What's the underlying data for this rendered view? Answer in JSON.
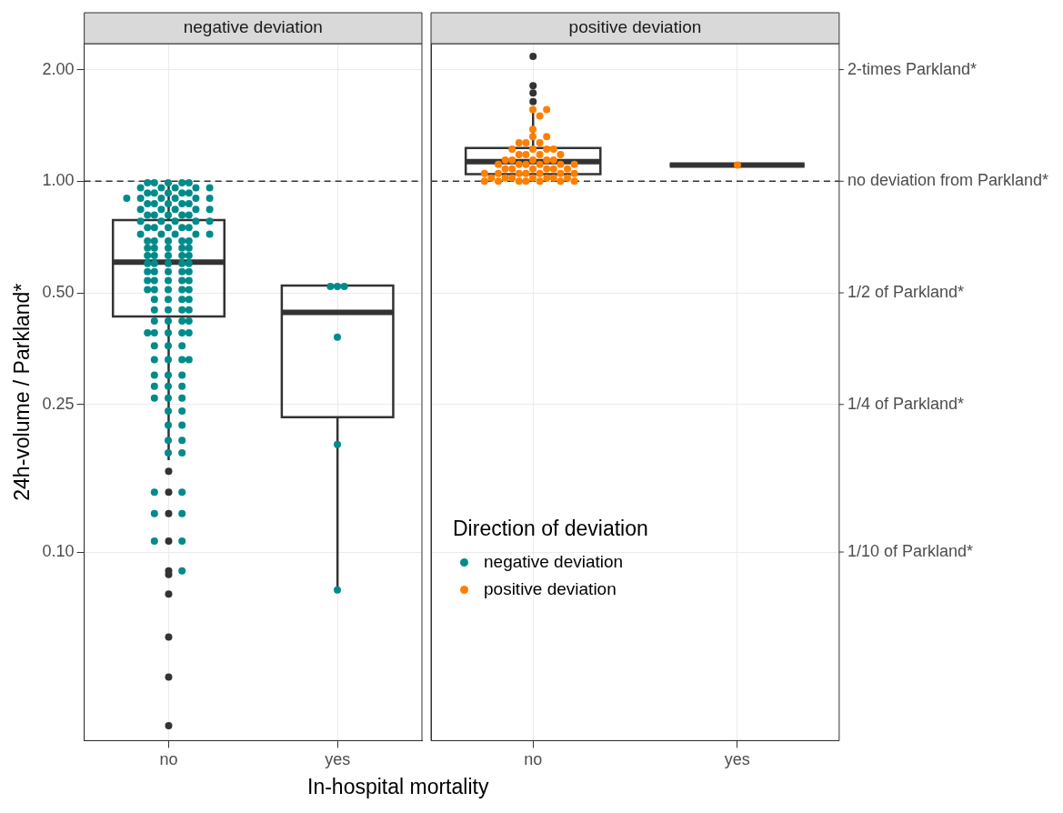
{
  "chart_data": [
    {
      "type": "box",
      "title": "negative deviation",
      "xlabel": "In-hospital mortality",
      "ylabel": "24h-volume / Parkland*",
      "categories": [
        "no",
        "yes"
      ],
      "log": true,
      "ylim": [
        0.031,
        2.35
      ],
      "yticks": [
        {
          "value": 0.1,
          "label": "0.10"
        },
        {
          "value": 0.25,
          "label": "0.25"
        },
        {
          "value": 0.5,
          "label": "0.50"
        },
        {
          "value": 1,
          "label": "1.00"
        },
        {
          "value": 2,
          "label": "2.00"
        }
      ],
      "grid": true,
      "ref_lines": [
        {
          "axis": "y",
          "value": 1,
          "color": "#333333",
          "line_style": "dashed"
        }
      ],
      "boxes": [
        {
          "low": 0.177,
          "q1": 0.432,
          "median": 0.605,
          "q3": 0.786,
          "high": 1.0,
          "outliers": [
            0.165,
            0.145,
            0.127,
            0.107,
            0.089,
            0.087,
            0.077,
            0.059,
            0.046,
            0.034
          ]
        },
        {
          "low": 0.079,
          "q1": 0.231,
          "median": 0.443,
          "q3": 0.523,
          "high": 0.523
        }
      ],
      "series": [
        {
          "name": "negative deviation",
          "type": "scatter",
          "color": "#008b8b",
          "x": [
            "no",
            "no",
            "no",
            "no",
            "no",
            "no",
            "no",
            "no",
            "no",
            "no",
            "no",
            "no",
            "no",
            "no",
            "no",
            "no",
            "no",
            "no",
            "no",
            "no",
            "no",
            "no",
            "no",
            "no",
            "no",
            "no",
            "no",
            "no",
            "no",
            "no",
            "no",
            "no",
            "no",
            "no",
            "no",
            "no",
            "no",
            "no",
            "no",
            "no",
            "no",
            "no",
            "no",
            "no",
            "no",
            "no",
            "no",
            "no",
            "no",
            "no",
            "no",
            "no",
            "no",
            "no",
            "no",
            "no",
            "no",
            "no",
            "no",
            "no",
            "no",
            "no",
            "no",
            "no",
            "no",
            "no",
            "no",
            "no",
            "no",
            "no",
            "no",
            "no",
            "no",
            "no",
            "no",
            "no",
            "no",
            "no",
            "no",
            "no",
            "no",
            "no",
            "no",
            "no",
            "no",
            "no",
            "no",
            "no",
            "no",
            "no",
            "no",
            "no",
            "no",
            "no",
            "no",
            "no",
            "no",
            "no",
            "no",
            "no",
            "no",
            "no",
            "no",
            "no",
            "no",
            "no",
            "no",
            "no",
            "no",
            "no",
            "no",
            "no",
            "no",
            "no",
            "no",
            "no",
            "no",
            "no",
            "no",
            "no",
            "no",
            "no",
            "no",
            "no",
            "no",
            "no",
            "no",
            "no",
            "no",
            "no",
            "no",
            "no",
            "no",
            "no",
            "yes",
            "yes",
            "yes",
            "yes",
            "yes",
            "yes"
          ],
          "values": [
            0.99,
            0.99,
            0.99,
            0.99,
            0.99,
            0.96,
            0.96,
            0.96,
            0.96,
            0.96,
            0.93,
            0.93,
            0.93,
            0.93,
            0.93,
            0.9,
            0.9,
            0.9,
            0.9,
            0.9,
            0.9,
            0.87,
            0.87,
            0.87,
            0.87,
            0.87,
            0.84,
            0.84,
            0.84,
            0.84,
            0.84,
            0.81,
            0.81,
            0.81,
            0.81,
            0.81,
            0.78,
            0.78,
            0.78,
            0.78,
            0.78,
            0.75,
            0.75,
            0.75,
            0.75,
            0.75,
            0.72,
            0.72,
            0.72,
            0.72,
            0.72,
            0.69,
            0.69,
            0.69,
            0.69,
            0.69,
            0.66,
            0.66,
            0.66,
            0.66,
            0.66,
            0.63,
            0.63,
            0.63,
            0.63,
            0.63,
            0.6,
            0.6,
            0.6,
            0.6,
            0.6,
            0.57,
            0.57,
            0.57,
            0.57,
            0.57,
            0.54,
            0.54,
            0.54,
            0.54,
            0.54,
            0.51,
            0.51,
            0.51,
            0.51,
            0.51,
            0.48,
            0.48,
            0.48,
            0.48,
            0.45,
            0.45,
            0.45,
            0.45,
            0.42,
            0.42,
            0.42,
            0.42,
            0.39,
            0.39,
            0.39,
            0.39,
            0.39,
            0.36,
            0.36,
            0.36,
            0.33,
            0.33,
            0.33,
            0.33,
            0.3,
            0.3,
            0.3,
            0.28,
            0.28,
            0.28,
            0.26,
            0.26,
            0.26,
            0.24,
            0.24,
            0.22,
            0.22,
            0.2,
            0.2,
            0.185,
            0.185,
            0.145,
            0.145,
            0.127,
            0.127,
            0.107,
            0.107,
            0.089,
            0.52,
            0.52,
            0.52,
            0.38,
            0.195,
            0.079
          ]
        }
      ]
    },
    {
      "type": "box",
      "title": "positive deviation",
      "categories": [
        "no",
        "yes"
      ],
      "log": true,
      "ylim": [
        0.031,
        2.35
      ],
      "yticks": [
        0.1,
        0.25,
        0.5,
        1,
        2
      ],
      "grid": true,
      "tick_labels": "x",
      "annotations": [
        "1/10 of Parkland*",
        "1/4 of Parkland*",
        "1/2 of Parkland*",
        "no deviation from Parkland*",
        "2-times Parkland*"
      ],
      "legend": "bottom left",
      "legend_title": "Direction of deviation",
      "ref_lines": [
        {
          "axis": "y",
          "value": 1,
          "color": "#333333",
          "line_style": "dashed"
        }
      ],
      "boxes": [
        {
          "low": 1.0,
          "q1": 1.045,
          "median": 1.13,
          "q3": 1.23,
          "high": 1.56,
          "outliers": [
            2.17,
            1.81,
            1.73,
            1.64
          ]
        },
        {
          "low": 1.106,
          "q1": 1.106,
          "median": 1.106,
          "q3": 1.106,
          "high": 1.106
        }
      ],
      "series": [
        {
          "name": "positive deviation",
          "type": "scatter",
          "color": "#ff7f00",
          "x": [
            "no",
            "no",
            "no",
            "no",
            "no",
            "no",
            "no",
            "no",
            "no",
            "no",
            "no",
            "no",
            "no",
            "no",
            "no",
            "no",
            "no",
            "no",
            "no",
            "no",
            "no",
            "no",
            "no",
            "no",
            "no",
            "no",
            "no",
            "no",
            "no",
            "no",
            "no",
            "no",
            "no",
            "no",
            "no",
            "no",
            "no",
            "no",
            "no",
            "no",
            "no",
            "no",
            "no",
            "no",
            "no",
            "no",
            "no",
            "no",
            "no",
            "no",
            "no",
            "no",
            "no",
            "no",
            "no",
            "yes"
          ],
          "values": [
            1.0,
            1.0,
            1.0,
            1.0,
            1.0,
            1.0,
            1.0,
            1.02,
            1.02,
            1.02,
            1.02,
            1.02,
            1.02,
            1.02,
            1.05,
            1.05,
            1.05,
            1.05,
            1.05,
            1.05,
            1.05,
            1.08,
            1.08,
            1.08,
            1.08,
            1.08,
            1.08,
            1.11,
            1.11,
            1.11,
            1.11,
            1.11,
            1.11,
            1.14,
            1.14,
            1.14,
            1.14,
            1.14,
            1.18,
            1.18,
            1.18,
            1.18,
            1.22,
            1.22,
            1.22,
            1.22,
            1.27,
            1.27,
            1.27,
            1.32,
            1.32,
            1.38,
            1.5,
            1.56,
            1.56,
            1.106
          ]
        }
      ]
    }
  ]
}
